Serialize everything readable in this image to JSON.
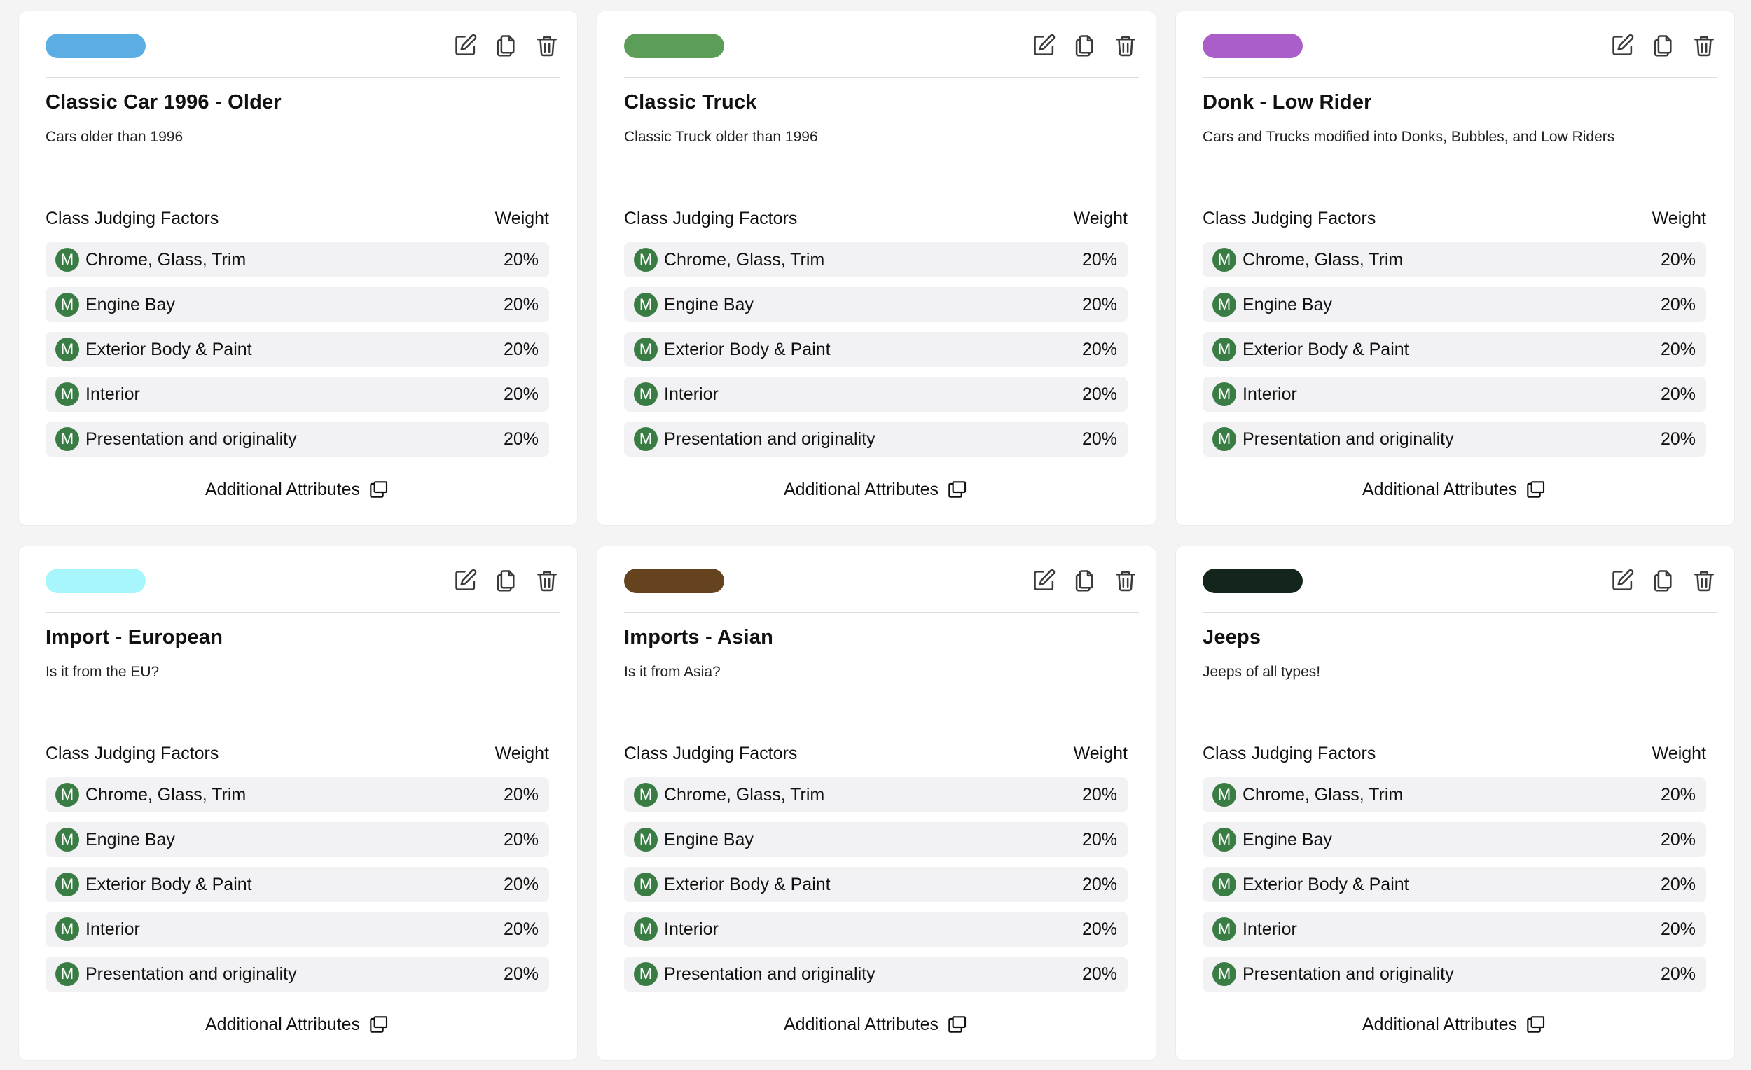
{
  "labels": {
    "factors_header": "Class Judging Factors",
    "weight_header": "Weight",
    "additional_attributes": "Additional Attributes",
    "badge_letter": "M"
  },
  "cards": [
    {
      "color": "#5aaee3",
      "title": "Classic Car 1996 - Older",
      "description": "Cars older than 1996",
      "factors": [
        {
          "name": "Chrome, Glass, Trim",
          "weight": "20%"
        },
        {
          "name": "Engine Bay",
          "weight": "20%"
        },
        {
          "name": "Exterior Body & Paint",
          "weight": "20%"
        },
        {
          "name": "Interior",
          "weight": "20%"
        },
        {
          "name": "Presentation and originality",
          "weight": "20%"
        }
      ]
    },
    {
      "color": "#5c9e57",
      "title": "Classic Truck",
      "description": "Classic Truck older than 1996",
      "factors": [
        {
          "name": "Chrome, Glass, Trim",
          "weight": "20%"
        },
        {
          "name": "Engine Bay",
          "weight": "20%"
        },
        {
          "name": "Exterior Body & Paint",
          "weight": "20%"
        },
        {
          "name": "Interior",
          "weight": "20%"
        },
        {
          "name": "Presentation and originality",
          "weight": "20%"
        }
      ]
    },
    {
      "color": "#a95ec9",
      "title": "Donk - Low Rider",
      "description": "Cars and Trucks modified into Donks, Bubbles, and Low Riders",
      "factors": [
        {
          "name": "Chrome, Glass, Trim",
          "weight": "20%"
        },
        {
          "name": "Engine Bay",
          "weight": "20%"
        },
        {
          "name": "Exterior Body & Paint",
          "weight": "20%"
        },
        {
          "name": "Interior",
          "weight": "20%"
        },
        {
          "name": "Presentation and originality",
          "weight": "20%"
        }
      ]
    },
    {
      "color": "#a6f6fb",
      "title": "Import - European",
      "description": "Is it from the EU?",
      "factors": [
        {
          "name": "Chrome, Glass, Trim",
          "weight": "20%"
        },
        {
          "name": "Engine Bay",
          "weight": "20%"
        },
        {
          "name": "Exterior Body & Paint",
          "weight": "20%"
        },
        {
          "name": "Interior",
          "weight": "20%"
        },
        {
          "name": "Presentation and originality",
          "weight": "20%"
        }
      ]
    },
    {
      "color": "#66431f",
      "title": "Imports - Asian",
      "description": "Is it from Asia?",
      "factors": [
        {
          "name": "Chrome, Glass, Trim",
          "weight": "20%"
        },
        {
          "name": "Engine Bay",
          "weight": "20%"
        },
        {
          "name": "Exterior Body & Paint",
          "weight": "20%"
        },
        {
          "name": "Interior",
          "weight": "20%"
        },
        {
          "name": "Presentation and originality",
          "weight": "20%"
        }
      ]
    },
    {
      "color": "#14251b",
      "title": "Jeeps",
      "description": "Jeeps of all types!",
      "factors": [
        {
          "name": "Chrome, Glass, Trim",
          "weight": "20%"
        },
        {
          "name": "Engine Bay",
          "weight": "20%"
        },
        {
          "name": "Exterior Body & Paint",
          "weight": "20%"
        },
        {
          "name": "Interior",
          "weight": "20%"
        },
        {
          "name": "Presentation and originality",
          "weight": "20%"
        }
      ]
    }
  ]
}
